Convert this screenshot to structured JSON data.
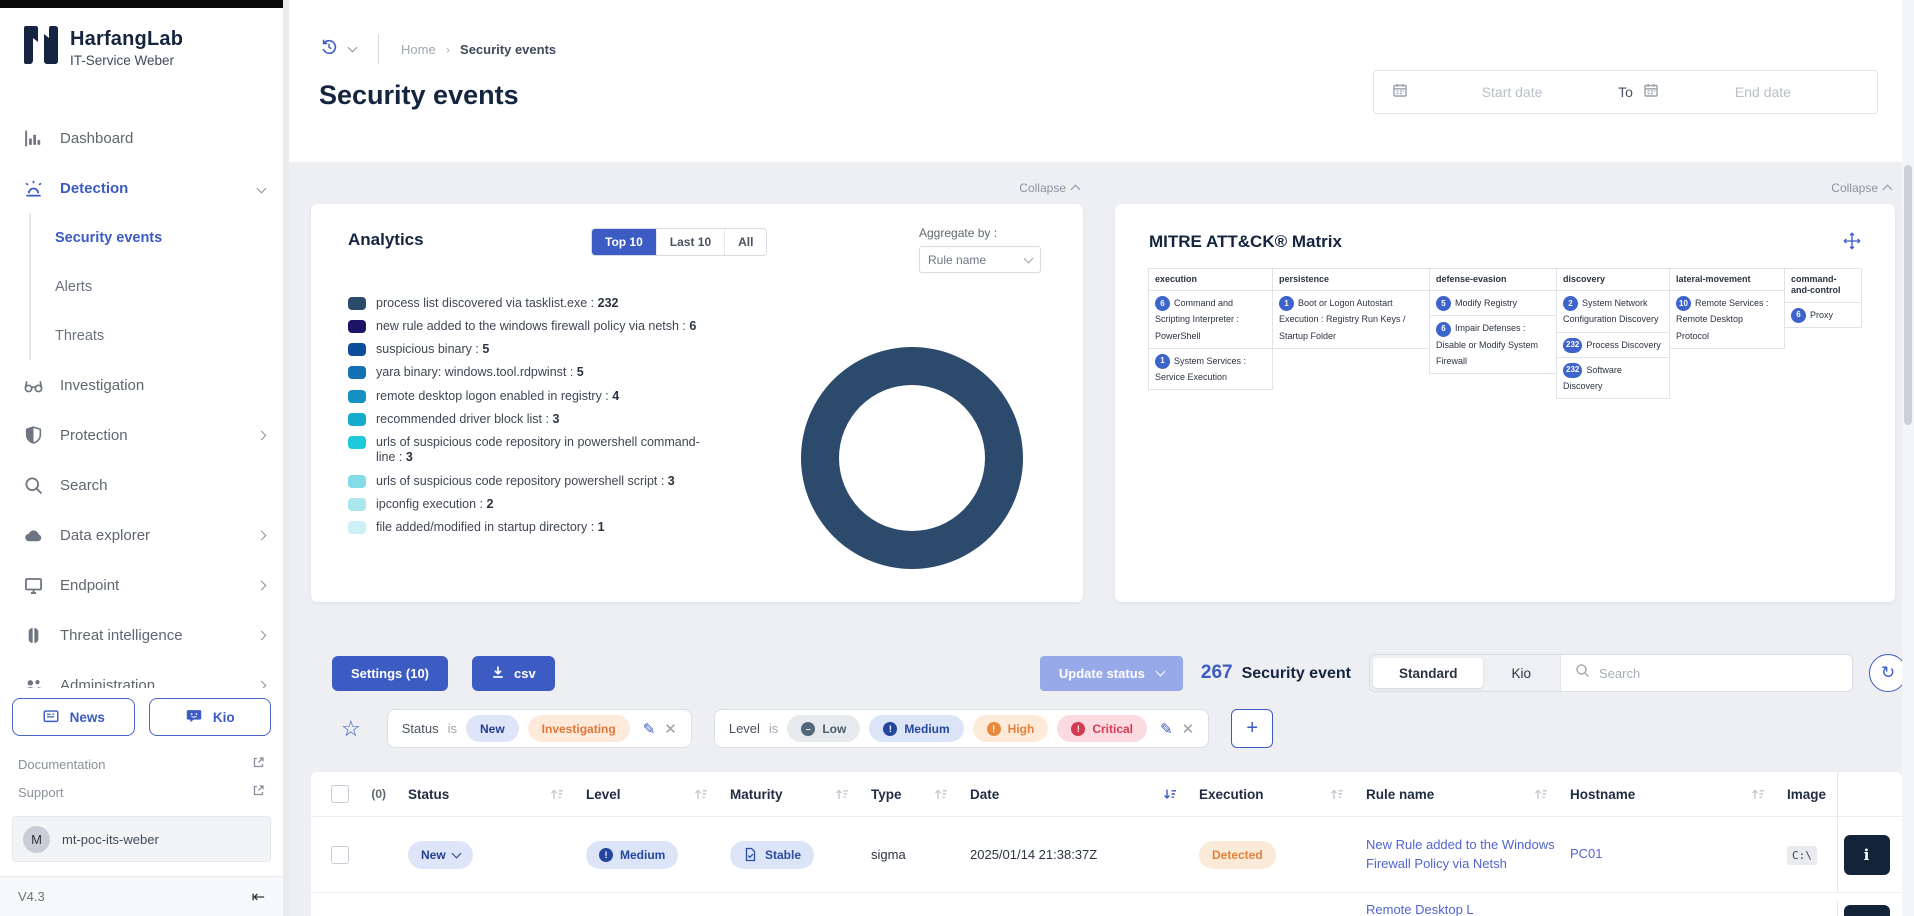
{
  "app": {
    "brand": "HarfangLab",
    "tenant": "IT-Service Weber"
  },
  "sidebar": {
    "items": [
      {
        "label": "Dashboard",
        "icon": "dashboard-icon"
      },
      {
        "label": "Detection",
        "icon": "detection-icon",
        "active": true,
        "expanded": true,
        "children": [
          {
            "label": "Security events",
            "active": true
          },
          {
            "label": "Alerts"
          },
          {
            "label": "Threats"
          }
        ]
      },
      {
        "label": "Investigation",
        "icon": "investigation-icon"
      },
      {
        "label": "Protection",
        "icon": "protection-icon",
        "chevron": true
      },
      {
        "label": "Search",
        "icon": "search-icon"
      },
      {
        "label": "Data explorer",
        "icon": "data-explorer-icon",
        "chevron": true
      },
      {
        "label": "Endpoint",
        "icon": "endpoint-icon",
        "chevron": true
      },
      {
        "label": "Threat intelligence",
        "icon": "threat-intelligence-icon",
        "chevron": true
      },
      {
        "label": "Administration",
        "icon": "administration-icon",
        "chevron": true
      }
    ],
    "news_button": "News",
    "kio_button": "Kio",
    "doc_link": "Documentation",
    "support_link": "Support",
    "user": {
      "initial": "M",
      "name": "mt-poc-its-weber"
    },
    "version": "V4.3"
  },
  "header": {
    "breadcrumb_home": "Home",
    "breadcrumb_current": "Security events",
    "title": "Security events",
    "date_start_placeholder": "Start date",
    "date_separator": "To",
    "date_end_placeholder": "End date"
  },
  "analytics": {
    "collapse_label": "Collapse",
    "title": "Analytics",
    "tabs": [
      {
        "label": "Top 10",
        "active": true
      },
      {
        "label": "Last 10"
      },
      {
        "label": "All"
      }
    ],
    "aggregate_label": "Aggregate by :",
    "aggregate_value": "Rule name"
  },
  "chart_data": {
    "type": "pie",
    "donut": true,
    "title": "Analytics (Top 10, aggregated by rule name)",
    "legend_position": "left",
    "categories": [
      "process list discovered via tasklist.exe",
      "new rule added to the windows firewall policy via netsh",
      "suspicious binary",
      "yara binary: windows.tool.rdpwinst",
      "remote desktop logon enabled in registry",
      "recommended driver block list",
      "urls of suspicious code repository in powershell command-line",
      "urls of suspicious code repository powershell script",
      "ipconfig execution",
      "file added/modified in startup directory"
    ],
    "values": [
      232,
      6,
      5,
      5,
      4,
      3,
      3,
      3,
      2,
      1
    ],
    "colors": [
      "#2c4a6b",
      "#1c1464",
      "#0c4e9c",
      "#1272b4",
      "#1691c4",
      "#16aacb",
      "#1ec9dc",
      "#82dbe6",
      "#abe6ef",
      "#cdf0f6"
    ]
  },
  "mitre": {
    "collapse_label": "Collapse",
    "title": "MITRE ATT&CK® Matrix",
    "columns": [
      {
        "tactic": "execution",
        "techniques": [
          {
            "count": "6",
            "name": "Command and Scripting Interpreter : PowerShell"
          },
          {
            "count": "1",
            "name": "System Services : Service Execution"
          }
        ]
      },
      {
        "tactic": "persistence",
        "techniques": [
          {
            "count": "1",
            "name": "Boot or Logon Autostart Execution : Registry Run Keys / Startup Folder"
          }
        ]
      },
      {
        "tactic": "defense-evasion",
        "techniques": [
          {
            "count": "5",
            "name": "Modify Registry"
          },
          {
            "count": "6",
            "name": "Impair Defenses : Disable or Modify System Firewall"
          }
        ]
      },
      {
        "tactic": "discovery",
        "techniques": [
          {
            "count": "2",
            "name": "System Network Configuration Discovery"
          },
          {
            "count": "232",
            "name": "Process Discovery"
          },
          {
            "count": "232",
            "name": "Software Discovery"
          }
        ]
      },
      {
        "tactic": "lateral-movement",
        "techniques": [
          {
            "count": "10",
            "name": "Remote Services : Remote Desktop Protocol"
          }
        ]
      },
      {
        "tactic": "command-and-control",
        "techniques": [
          {
            "count": "6",
            "name": "Proxy"
          }
        ]
      }
    ]
  },
  "toolbar": {
    "settings_label": "Settings (10)",
    "csv_label": "csv",
    "update_status_label": "Update status",
    "count": "267",
    "count_label": "Security event",
    "view_tabs": [
      {
        "label": "Standard",
        "active": true
      },
      {
        "label": "Kio"
      }
    ],
    "search_placeholder": "Search"
  },
  "filters": {
    "status": {
      "field": "Status",
      "operator": "is",
      "values": [
        {
          "label": "New",
          "type": "new"
        },
        {
          "label": "Investigating",
          "type": "investigating"
        }
      ]
    },
    "level": {
      "field": "Level",
      "operator": "is",
      "values": [
        {
          "label": "Low",
          "type": "low",
          "glyph": "–"
        },
        {
          "label": "Medium",
          "type": "medium",
          "glyph": "!"
        },
        {
          "label": "High",
          "type": "high",
          "glyph": "!"
        },
        {
          "label": "Critical",
          "type": "critical",
          "glyph": "!"
        }
      ]
    },
    "add_label": "+"
  },
  "table": {
    "selected_count": "(0)",
    "columns": [
      "Status",
      "Level",
      "Maturity",
      "Type",
      "Date",
      "Execution",
      "Rule name",
      "Hostname",
      "Image"
    ],
    "sort_active_column": "Date",
    "rows": [
      {
        "status": "New",
        "level": "Medium",
        "maturity": "Stable",
        "type": "sigma",
        "date": "2025/01/14 21:38:37Z",
        "execution": "Detected",
        "rule_name": "New Rule added to the Windows Firewall Policy via Netsh",
        "hostname": "PC01",
        "image": "C:\\",
        "info": "i"
      }
    ],
    "partial_row": {
      "rule_name": "Remote Desktop L",
      "info": "i"
    }
  }
}
